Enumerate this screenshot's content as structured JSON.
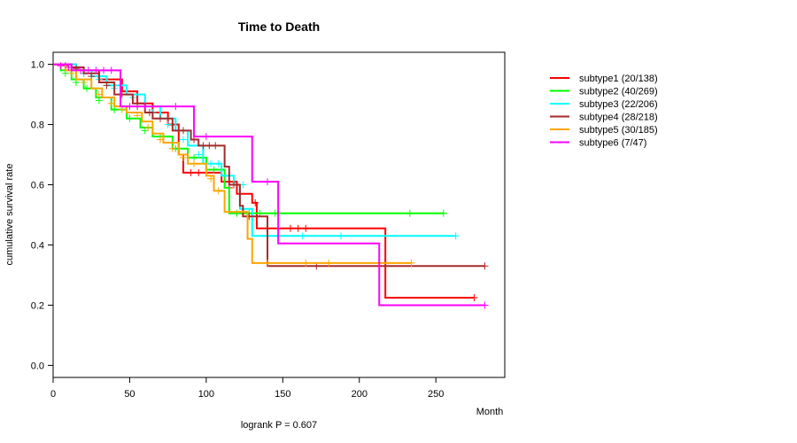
{
  "chart_data": {
    "type": "line",
    "title": "Time to Death",
    "xlabel": "Month",
    "ylabel": "cumulative survival rate",
    "note": "logrank P = 0.607",
    "xlim": [
      0,
      295
    ],
    "ylim": [
      -0.04,
      1.04
    ],
    "xticks": [
      0,
      50,
      100,
      150,
      200,
      250
    ],
    "yticks": [
      0.0,
      0.2,
      0.4,
      0.6,
      0.8,
      1.0
    ],
    "ytick_labels": [
      "0.0",
      "0.2",
      "0.4",
      "0.6",
      "0.8",
      "1.0"
    ],
    "grid": false,
    "legend_position": "top-right",
    "series": [
      {
        "name": "subtype1 (20/138)",
        "color": "#ff0000",
        "steps": [
          [
            0,
            1.0
          ],
          [
            15,
            0.98
          ],
          [
            30,
            0.95
          ],
          [
            45,
            0.91
          ],
          [
            55,
            0.87
          ],
          [
            65,
            0.84
          ],
          [
            75,
            0.8
          ],
          [
            82,
            0.7
          ],
          [
            85,
            0.64
          ],
          [
            105,
            0.64
          ],
          [
            110,
            0.61
          ],
          [
            120,
            0.57
          ],
          [
            130,
            0.54
          ],
          [
            133,
            0.455
          ],
          [
            216,
            0.455
          ],
          [
            217,
            0.225
          ],
          [
            275,
            0.225
          ]
        ],
        "censored": [
          [
            10,
            0.99
          ],
          [
            20,
            0.97
          ],
          [
            40,
            0.93
          ],
          [
            60,
            0.86
          ],
          [
            90,
            0.64
          ],
          [
            95,
            0.64
          ],
          [
            100,
            0.64
          ],
          [
            115,
            0.59
          ],
          [
            132,
            0.54
          ],
          [
            155,
            0.455
          ],
          [
            160,
            0.455
          ],
          [
            165,
            0.455
          ],
          [
            275,
            0.225
          ]
        ]
      },
      {
        "name": "subtype2 (40/269)",
        "color": "#00ff00",
        "steps": [
          [
            0,
            1.0
          ],
          [
            5,
            0.98
          ],
          [
            12,
            0.95
          ],
          [
            20,
            0.92
          ],
          [
            28,
            0.89
          ],
          [
            38,
            0.85
          ],
          [
            48,
            0.82
          ],
          [
            57,
            0.79
          ],
          [
            65,
            0.76
          ],
          [
            78,
            0.72
          ],
          [
            88,
            0.69
          ],
          [
            100,
            0.65
          ],
          [
            112,
            0.59
          ],
          [
            115,
            0.505
          ],
          [
            255,
            0.505
          ]
        ],
        "censored": [
          [
            8,
            0.97
          ],
          [
            15,
            0.94
          ],
          [
            22,
            0.92
          ],
          [
            30,
            0.88
          ],
          [
            40,
            0.85
          ],
          [
            50,
            0.82
          ],
          [
            60,
            0.78
          ],
          [
            70,
            0.76
          ],
          [
            80,
            0.72
          ],
          [
            92,
            0.69
          ],
          [
            105,
            0.65
          ],
          [
            120,
            0.505
          ],
          [
            128,
            0.505
          ],
          [
            135,
            0.505
          ],
          [
            145,
            0.505
          ],
          [
            233,
            0.505
          ],
          [
            255,
            0.505
          ]
        ]
      },
      {
        "name": "subtype3 (22/206)",
        "color": "#00ffff",
        "steps": [
          [
            0,
            1.0
          ],
          [
            15,
            0.98
          ],
          [
            25,
            0.96
          ],
          [
            35,
            0.93
          ],
          [
            48,
            0.9
          ],
          [
            60,
            0.86
          ],
          [
            70,
            0.82
          ],
          [
            80,
            0.78
          ],
          [
            88,
            0.73
          ],
          [
            98,
            0.67
          ],
          [
            110,
            0.63
          ],
          [
            118,
            0.6
          ],
          [
            122,
            0.52
          ],
          [
            130,
            0.43
          ],
          [
            263,
            0.43
          ]
        ],
        "censored": [
          [
            20,
            0.97
          ],
          [
            30,
            0.95
          ],
          [
            40,
            0.92
          ],
          [
            52,
            0.89
          ],
          [
            65,
            0.84
          ],
          [
            75,
            0.8
          ],
          [
            85,
            0.75
          ],
          [
            95,
            0.7
          ],
          [
            103,
            0.67
          ],
          [
            108,
            0.67
          ],
          [
            115,
            0.63
          ],
          [
            124,
            0.6
          ],
          [
            140,
            0.43
          ],
          [
            163,
            0.43
          ],
          [
            188,
            0.43
          ],
          [
            263,
            0.43
          ]
        ]
      },
      {
        "name": "subtype4 (28/218)",
        "color": "#a52a2a",
        "steps": [
          [
            0,
            1.0
          ],
          [
            12,
            0.99
          ],
          [
            20,
            0.97
          ],
          [
            30,
            0.94
          ],
          [
            40,
            0.9
          ],
          [
            52,
            0.87
          ],
          [
            60,
            0.84
          ],
          [
            65,
            0.82
          ],
          [
            78,
            0.78
          ],
          [
            90,
            0.75
          ],
          [
            95,
            0.73
          ],
          [
            110,
            0.73
          ],
          [
            112,
            0.66
          ],
          [
            115,
            0.6
          ],
          [
            122,
            0.53
          ],
          [
            124,
            0.495
          ],
          [
            135,
            0.495
          ],
          [
            140,
            0.33
          ],
          [
            282,
            0.33
          ]
        ],
        "censored": [
          [
            8,
            0.995
          ],
          [
            15,
            0.985
          ],
          [
            25,
            0.96
          ],
          [
            35,
            0.93
          ],
          [
            45,
            0.9
          ],
          [
            55,
            0.86
          ],
          [
            63,
            0.84
          ],
          [
            70,
            0.82
          ],
          [
            85,
            0.78
          ],
          [
            92,
            0.75
          ],
          [
            98,
            0.73
          ],
          [
            102,
            0.73
          ],
          [
            106,
            0.73
          ],
          [
            118,
            0.6
          ],
          [
            128,
            0.495
          ],
          [
            172,
            0.33
          ],
          [
            282,
            0.33
          ]
        ]
      },
      {
        "name": "subtype5 (30/185)",
        "color": "#ffa500",
        "steps": [
          [
            0,
            1.0
          ],
          [
            8,
            0.98
          ],
          [
            15,
            0.95
          ],
          [
            25,
            0.92
          ],
          [
            32,
            0.89
          ],
          [
            40,
            0.86
          ],
          [
            48,
            0.84
          ],
          [
            58,
            0.81
          ],
          [
            65,
            0.77
          ],
          [
            72,
            0.74
          ],
          [
            82,
            0.7
          ],
          [
            88,
            0.67
          ],
          [
            100,
            0.63
          ],
          [
            105,
            0.58
          ],
          [
            112,
            0.51
          ],
          [
            120,
            0.51
          ],
          [
            127,
            0.42
          ],
          [
            130,
            0.34
          ],
          [
            234,
            0.34
          ]
        ],
        "censored": [
          [
            12,
            0.97
          ],
          [
            20,
            0.94
          ],
          [
            30,
            0.9
          ],
          [
            38,
            0.87
          ],
          [
            45,
            0.85
          ],
          [
            55,
            0.83
          ],
          [
            62,
            0.79
          ],
          [
            70,
            0.75
          ],
          [
            78,
            0.72
          ],
          [
            85,
            0.69
          ],
          [
            92,
            0.67
          ],
          [
            103,
            0.62
          ],
          [
            108,
            0.58
          ],
          [
            140,
            0.34
          ],
          [
            165,
            0.34
          ],
          [
            180,
            0.34
          ],
          [
            234,
            0.34
          ]
        ]
      },
      {
        "name": "subtype6 (7/47)",
        "color": "#ff00ff",
        "steps": [
          [
            0,
            1.0
          ],
          [
            12,
            0.98
          ],
          [
            25,
            0.98
          ],
          [
            42,
            0.98
          ],
          [
            44,
            0.86
          ],
          [
            90,
            0.86
          ],
          [
            92,
            0.76
          ],
          [
            128,
            0.76
          ],
          [
            130,
            0.61
          ],
          [
            145,
            0.61
          ],
          [
            147,
            0.405
          ],
          [
            212,
            0.405
          ],
          [
            213,
            0.2
          ],
          [
            282,
            0.2
          ]
        ],
        "censored": [
          [
            5,
            0.995
          ],
          [
            10,
            0.99
          ],
          [
            18,
            0.98
          ],
          [
            23,
            0.98
          ],
          [
            28,
            0.98
          ],
          [
            33,
            0.98
          ],
          [
            38,
            0.98
          ],
          [
            50,
            0.86
          ],
          [
            60,
            0.86
          ],
          [
            80,
            0.86
          ],
          [
            100,
            0.76
          ],
          [
            140,
            0.61
          ],
          [
            282,
            0.2
          ]
        ]
      }
    ]
  }
}
